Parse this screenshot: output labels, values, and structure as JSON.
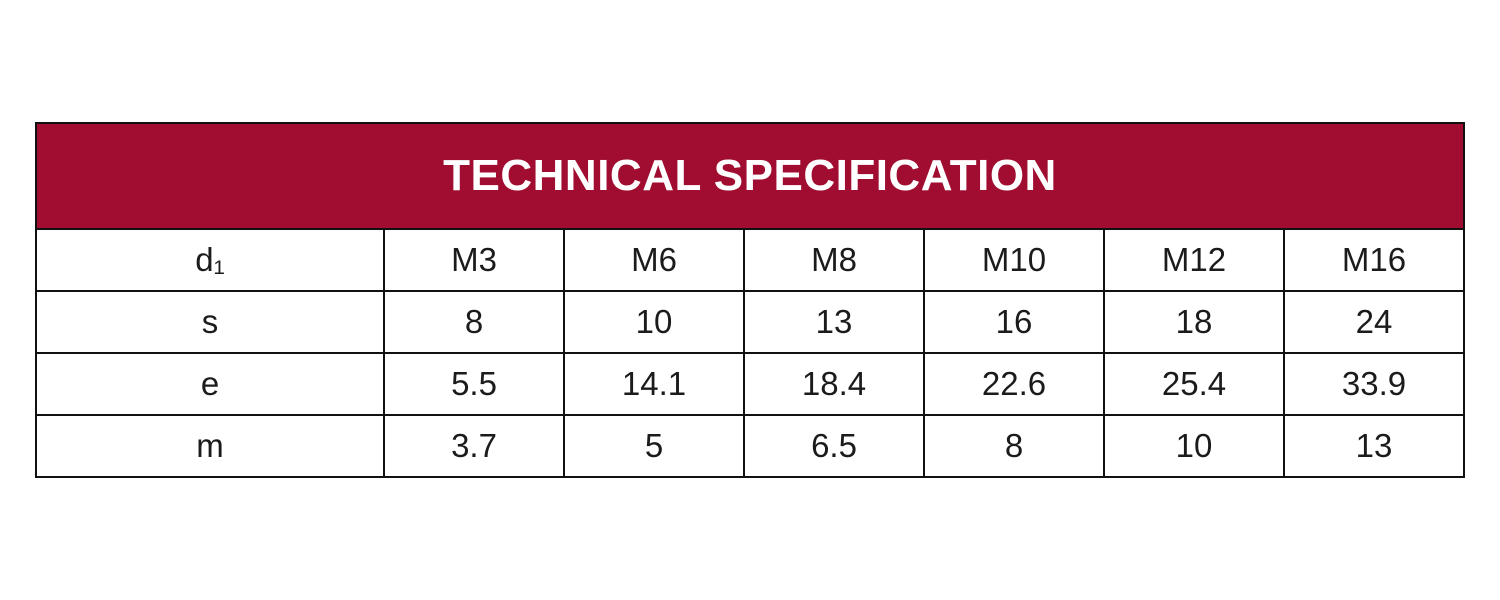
{
  "table": {
    "title": "TECHNICAL SPECIFICATION",
    "header_bg_color": "#A00D30",
    "header_text_color": "#ffffff",
    "border_color": "#111111",
    "rows": [
      {
        "label": "d₁",
        "cells": [
          "M3",
          "M6",
          "M8",
          "M10",
          "M12",
          "M16"
        ]
      },
      {
        "label": "s",
        "cells": [
          "8",
          "10",
          "13",
          "16",
          "18",
          "24"
        ]
      },
      {
        "label": "e",
        "cells": [
          "5.5",
          "14.1",
          "18.4",
          "22.6",
          "25.4",
          "33.9"
        ]
      },
      {
        "label": "m",
        "cells": [
          "3.7",
          "5",
          "6.5",
          "8",
          "10",
          "13"
        ]
      }
    ]
  }
}
